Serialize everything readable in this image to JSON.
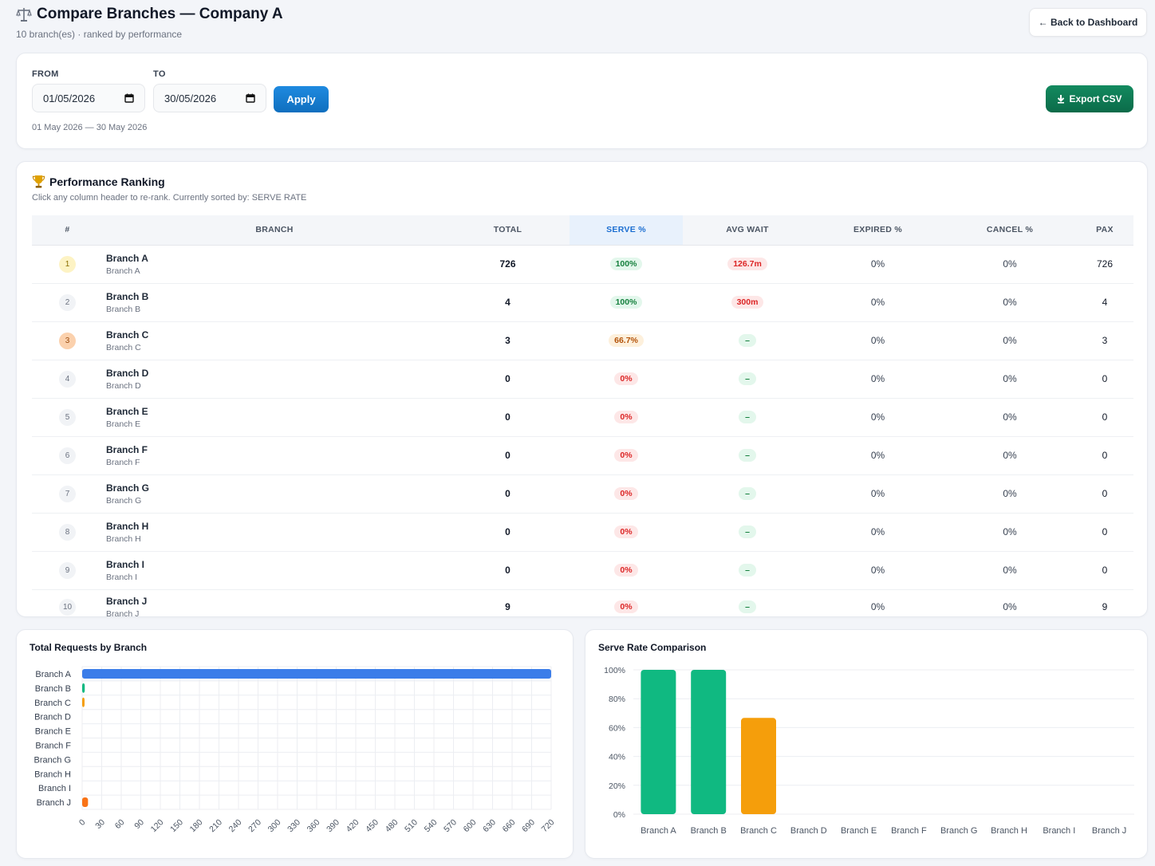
{
  "header": {
    "title": "Compare Branches — Company A",
    "subtitle": "10 branch(es) · ranked by performance",
    "back_label": "← Back to Dashboard"
  },
  "filters": {
    "from_label": "FROM",
    "to_label": "TO",
    "from_value": "01/05/2026",
    "to_value": "30/05/2026",
    "apply_label": "Apply",
    "range_text": "01 May 2026 — 30 May 2026",
    "export_label": "Export CSV"
  },
  "ranking": {
    "title": "Performance Ranking",
    "hint": "Click any column header to re-rank. Currently sorted by: SERVE RATE",
    "columns": [
      "#",
      "BRANCH",
      "TOTAL",
      "SERVE %",
      "AVG WAIT",
      "EXPIRED %",
      "CANCEL %",
      "PAX"
    ],
    "rows": [
      {
        "rank": "1",
        "name": "Branch A",
        "sub": "Branch A",
        "total": "726",
        "serve": "100%",
        "wait": "126.7m",
        "expired": "0%",
        "cancel": "0%",
        "pax": "726"
      },
      {
        "rank": "2",
        "name": "Branch B",
        "sub": "Branch B",
        "total": "4",
        "serve": "100%",
        "wait": "300m",
        "expired": "0%",
        "cancel": "0%",
        "pax": "4"
      },
      {
        "rank": "3",
        "name": "Branch C",
        "sub": "Branch C",
        "total": "3",
        "serve": "66.7%",
        "wait": "–",
        "expired": "0%",
        "cancel": "0%",
        "pax": "3"
      },
      {
        "rank": "4",
        "name": "Branch D",
        "sub": "Branch D",
        "total": "0",
        "serve": "0%",
        "wait": "–",
        "expired": "0%",
        "cancel": "0%",
        "pax": "0"
      },
      {
        "rank": "5",
        "name": "Branch E",
        "sub": "Branch E",
        "total": "0",
        "serve": "0%",
        "wait": "–",
        "expired": "0%",
        "cancel": "0%",
        "pax": "0"
      },
      {
        "rank": "6",
        "name": "Branch F",
        "sub": "Branch F",
        "total": "0",
        "serve": "0%",
        "wait": "–",
        "expired": "0%",
        "cancel": "0%",
        "pax": "0"
      },
      {
        "rank": "7",
        "name": "Branch G",
        "sub": "Branch G",
        "total": "0",
        "serve": "0%",
        "wait": "–",
        "expired": "0%",
        "cancel": "0%",
        "pax": "0"
      },
      {
        "rank": "8",
        "name": "Branch H",
        "sub": "Branch H",
        "total": "0",
        "serve": "0%",
        "wait": "–",
        "expired": "0%",
        "cancel": "0%",
        "pax": "0"
      },
      {
        "rank": "9",
        "name": "Branch I",
        "sub": "Branch I",
        "total": "0",
        "serve": "0%",
        "wait": "–",
        "expired": "0%",
        "cancel": "0%",
        "pax": "0"
      },
      {
        "rank": "10",
        "name": "Branch J",
        "sub": "Branch J",
        "total": "9",
        "serve": "0%",
        "wait": "–",
        "expired": "0%",
        "cancel": "0%",
        "pax": "9"
      }
    ]
  },
  "colors": {
    "blue": "#3b7de9",
    "green": "#10b981",
    "amber": "#f59e0b",
    "orange": "#f97316"
  },
  "chart_data": [
    {
      "type": "bar",
      "orientation": "horizontal",
      "title": "Total Requests by Branch",
      "categories": [
        "Branch A",
        "Branch B",
        "Branch C",
        "Branch D",
        "Branch E",
        "Branch F",
        "Branch G",
        "Branch H",
        "Branch I",
        "Branch J"
      ],
      "values": [
        726,
        4,
        3,
        0,
        0,
        0,
        0,
        0,
        0,
        9
      ],
      "bar_colors": [
        "#3b7de9",
        "#10b981",
        "#f59e0b",
        "#3b7de9",
        "#3b7de9",
        "#3b7de9",
        "#3b7de9",
        "#3b7de9",
        "#3b7de9",
        "#f97316"
      ],
      "xlim": [
        0,
        720
      ],
      "xticks": [
        "0",
        "30",
        "60",
        "90",
        "120",
        "150",
        "180",
        "210",
        "240",
        "270",
        "300",
        "330",
        "360",
        "390",
        "420",
        "450",
        "480",
        "510",
        "540",
        "570",
        "600",
        "630",
        "660",
        "690",
        "720"
      ],
      "grid": true
    },
    {
      "type": "bar",
      "title": "Serve Rate Comparison",
      "categories": [
        "Branch A",
        "Branch B",
        "Branch C",
        "Branch D",
        "Branch E",
        "Branch F",
        "Branch G",
        "Branch H",
        "Branch I",
        "Branch J"
      ],
      "values": [
        100,
        100,
        66.7,
        0,
        0,
        0,
        0,
        0,
        0,
        0
      ],
      "bar_colors": [
        "#10b981",
        "#10b981",
        "#f59e0b",
        "#10b981",
        "#10b981",
        "#10b981",
        "#10b981",
        "#10b981",
        "#10b981",
        "#10b981"
      ],
      "ylim": [
        0,
        100
      ],
      "yticks": [
        "0%",
        "20%",
        "40%",
        "60%",
        "80%",
        "100%"
      ],
      "grid": true
    }
  ]
}
